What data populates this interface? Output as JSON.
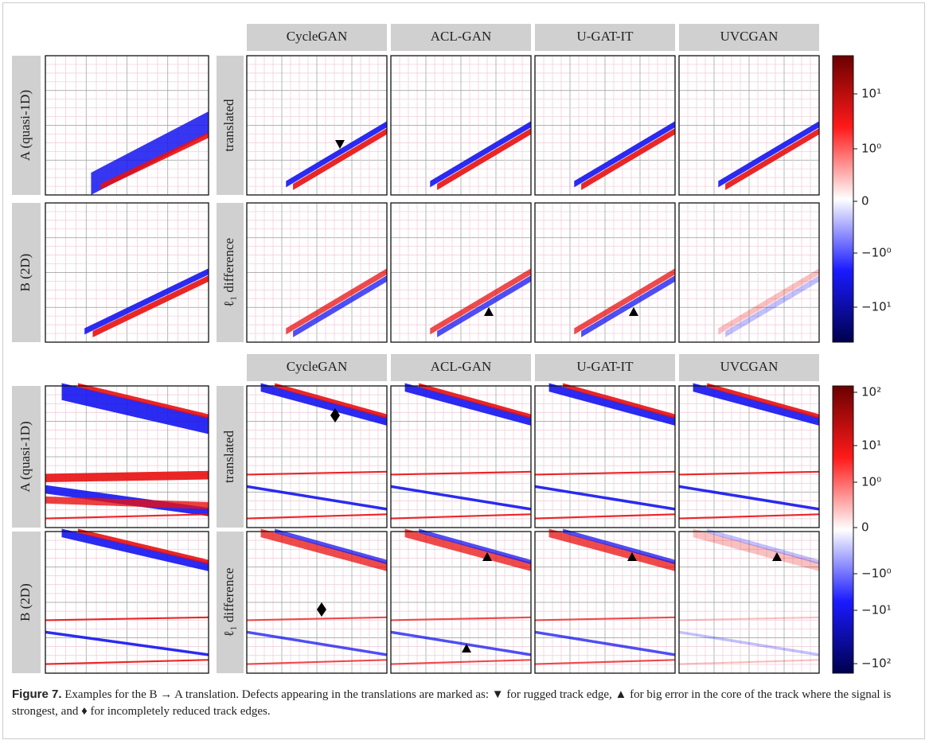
{
  "panels": [
    {
      "columns": [
        "CycleGAN",
        "ACL-GAN",
        "U-GAT-IT",
        "UVCGAN"
      ],
      "rows": [
        {
          "input_label": "A (quasi-1D)",
          "output_label": "translated"
        },
        {
          "input_label": "B (2D)",
          "output_label": "ℓ₁ difference"
        }
      ],
      "colorbar_ticks": [
        "10¹",
        "10⁰",
        "0",
        "−10⁰",
        "−10¹"
      ]
    },
    {
      "columns": [
        "CycleGAN",
        "ACL-GAN",
        "U-GAT-IT",
        "UVCGAN"
      ],
      "rows": [
        {
          "input_label": "A (quasi-1D)",
          "output_label": "translated"
        },
        {
          "input_label": "B (2D)",
          "output_label": "ℓ₁ difference"
        }
      ],
      "colorbar_ticks": [
        "10²",
        "10¹",
        "10⁰",
        "0",
        "−10⁰",
        "−10¹",
        "−10²"
      ]
    }
  ],
  "caption": {
    "label": "Figure 7.",
    "text": "Examples for the B → A translation. Defects appearing in the translations are marked as: ▼ for rugged track edge, ▲ for big error in the core of the track where the signal is strongest, and ♦ for incompletely reduced track edges."
  }
}
